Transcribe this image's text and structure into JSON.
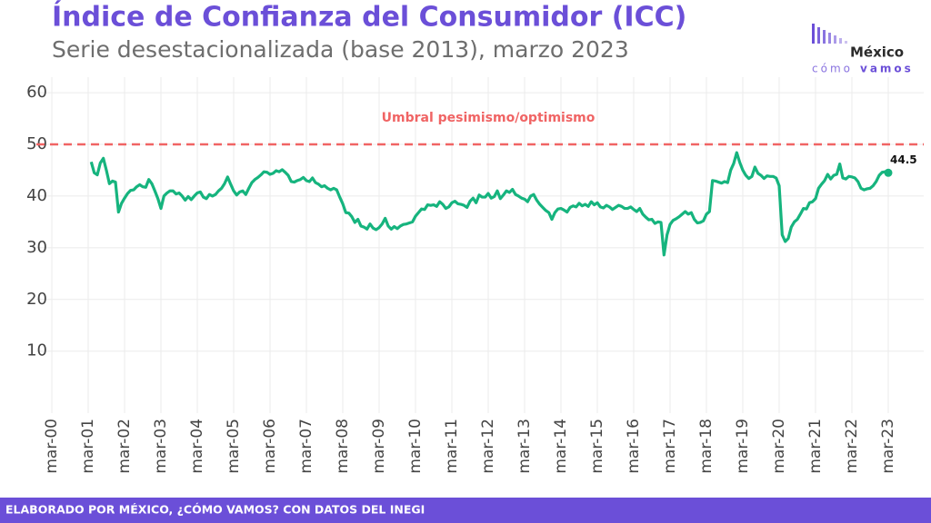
{
  "chart_data": {
    "type": "line",
    "title": "Índice de Confianza del Consumidor (ICC)",
    "subtitle": "Serie desestacionalizada (base 2013), marzo 2023",
    "threshold": 50,
    "threshold_label": "Umbral pesimismo/optimismo",
    "threshold_color": "#f06464",
    "footer": "ELABORADO POR MÉXICO, ¿CÓMO VAMOS? CON DATOS DEL INEGI",
    "logo": {
      "name": "México",
      "word1": "cómo",
      "word2": "vamos"
    },
    "ylim": [
      -2,
      63
    ],
    "yticks": [
      10,
      20,
      30,
      40,
      50,
      60
    ],
    "grid": true,
    "categories": [
      "mar-00",
      null,
      null,
      null,
      null,
      null,
      null,
      null,
      null,
      null,
      null,
      null,
      "mar-01",
      null,
      null,
      null,
      null,
      null,
      null,
      null,
      null,
      null,
      null,
      null,
      "mar-02",
      null,
      null,
      null,
      null,
      null,
      null,
      null,
      null,
      null,
      null,
      null,
      "mar-03",
      null,
      null,
      null,
      null,
      null,
      null,
      null,
      null,
      null,
      null,
      null,
      "mar-04",
      null,
      null,
      null,
      null,
      null,
      null,
      null,
      null,
      null,
      null,
      null,
      "mar-05",
      null,
      null,
      null,
      null,
      null,
      null,
      null,
      null,
      null,
      null,
      null,
      "mar-06",
      null,
      null,
      null,
      null,
      null,
      null,
      null,
      null,
      null,
      null,
      null,
      "mar-07",
      null,
      null,
      null,
      null,
      null,
      null,
      null,
      null,
      null,
      null,
      null,
      "mar-08",
      null,
      null,
      null,
      null,
      null,
      null,
      null,
      null,
      null,
      null,
      null,
      "mar-09",
      null,
      null,
      null,
      null,
      null,
      null,
      null,
      null,
      null,
      null,
      null,
      "mar-10",
      null,
      null,
      null,
      null,
      null,
      null,
      null,
      null,
      null,
      null,
      null,
      "mar-11",
      null,
      null,
      null,
      null,
      null,
      null,
      null,
      null,
      null,
      null,
      null,
      "mar-12",
      null,
      null,
      null,
      null,
      null,
      null,
      null,
      null,
      null,
      null,
      null,
      "mar-13",
      null,
      null,
      null,
      null,
      null,
      null,
      null,
      null,
      null,
      null,
      null,
      "mar-14",
      null,
      null,
      null,
      null,
      null,
      null,
      null,
      null,
      null,
      null,
      null,
      "mar-15",
      null,
      null,
      null,
      null,
      null,
      null,
      null,
      null,
      null,
      null,
      null,
      "mar-16",
      null,
      null,
      null,
      null,
      null,
      null,
      null,
      null,
      null,
      null,
      null,
      "mar-17",
      null,
      null,
      null,
      null,
      null,
      null,
      null,
      null,
      null,
      null,
      null,
      "mar-18",
      null,
      null,
      null,
      null,
      null,
      null,
      null,
      null,
      null,
      null,
      null,
      "mar-19",
      null,
      null,
      null,
      null,
      null,
      null,
      null,
      null,
      null,
      null,
      null,
      "mar-20",
      null,
      null,
      null,
      null,
      null,
      null,
      null,
      null,
      null,
      null,
      null,
      "mar-21",
      null,
      null,
      null,
      null,
      null,
      null,
      null,
      null,
      null,
      null,
      null,
      "mar-22",
      null,
      null,
      null,
      null,
      null,
      null,
      null,
      null,
      null,
      null,
      null,
      "mar-23"
    ],
    "series": [
      {
        "name": "ICC",
        "color": "#16b47e",
        "values": [
          null,
          null,
          null,
          null,
          null,
          null,
          null,
          null,
          null,
          null,
          null,
          null,
          null,
          46.6,
          44.5,
          44.1,
          46.4,
          47.3,
          45.0,
          42.4,
          42.9,
          42.7,
          36.9,
          38.6,
          39.6,
          40.5,
          41.1,
          41.2,
          41.8,
          42.2,
          41.8,
          41.7,
          43.2,
          42.4,
          41.0,
          39.5,
          37.6,
          40.0,
          40.6,
          41.0,
          41.0,
          40.4,
          40.6,
          40.0,
          39.2,
          39.9,
          39.3,
          40.0,
          40.6,
          40.8,
          39.8,
          39.5,
          40.3,
          40.0,
          40.3,
          41.0,
          41.5,
          42.4,
          43.7,
          42.3,
          41.0,
          40.2,
          40.8,
          41.0,
          40.3,
          41.5,
          42.6,
          43.2,
          43.6,
          44.1,
          44.7,
          44.6,
          44.2,
          44.4,
          44.9,
          44.7,
          45.1,
          44.6,
          44.0,
          42.8,
          42.7,
          43.0,
          43.2,
          43.6,
          43.0,
          42.8,
          43.5,
          42.6,
          42.3,
          41.8,
          42.0,
          41.5,
          41.2,
          41.5,
          41.2,
          39.8,
          38.5,
          36.8,
          36.7,
          36.0,
          34.9,
          35.5,
          34.2,
          34.0,
          33.6,
          34.6,
          33.8,
          33.5,
          33.9,
          34.6,
          35.7,
          34.2,
          33.6,
          34.1,
          33.7,
          34.2,
          34.5,
          34.6,
          34.8,
          35.0,
          36.1,
          36.8,
          37.5,
          37.4,
          38.3,
          38.2,
          38.3,
          38.0,
          38.9,
          38.4,
          37.6,
          37.9,
          38.7,
          39.0,
          38.5,
          38.4,
          38.2,
          37.8,
          39.0,
          39.6,
          38.7,
          40.2,
          39.8,
          39.8,
          40.5,
          39.6,
          39.9,
          41.0,
          39.5,
          40.2,
          41.0,
          40.7,
          41.3,
          40.3,
          40.0,
          39.6,
          39.4,
          38.9,
          40.0,
          40.3,
          39.2,
          38.4,
          37.8,
          37.2,
          36.8,
          35.5,
          36.8,
          37.5,
          37.6,
          37.3,
          36.9,
          37.8,
          38.1,
          37.9,
          38.6,
          38.1,
          38.4,
          38.0,
          38.9,
          38.3,
          38.7,
          37.9,
          37.7,
          38.2,
          37.9,
          37.4,
          37.8,
          38.2,
          38.0,
          37.6,
          37.6,
          37.9,
          37.4,
          37.0,
          37.6,
          36.5,
          35.9,
          35.4,
          35.5,
          34.7,
          35.0,
          34.9,
          28.6,
          32.5,
          34.5,
          35.3,
          35.6,
          36.0,
          36.5,
          37.0,
          36.5,
          36.8,
          35.5,
          34.8,
          34.9,
          35.2,
          36.5,
          37.0,
          43.0,
          42.9,
          42.7,
          42.5,
          42.8,
          42.6,
          45.0,
          46.3,
          48.4,
          46.5,
          45.0,
          44.0,
          43.4,
          43.8,
          45.6,
          44.4,
          44.0,
          43.4,
          43.9,
          43.8,
          43.8,
          43.5,
          42.0,
          32.5,
          31.2,
          31.8,
          34.0,
          35.0,
          35.5,
          36.5,
          37.6,
          37.5,
          38.7,
          38.9,
          39.5,
          41.5,
          42.3,
          43.0,
          44.2,
          43.3,
          44.0,
          44.2,
          46.2,
          43.5,
          43.3,
          43.8,
          43.7,
          43.5,
          42.8,
          41.5,
          41.2,
          41.4,
          41.5,
          42.0,
          42.8,
          44.0,
          44.6,
          44.7,
          44.5
        ]
      }
    ]
  }
}
